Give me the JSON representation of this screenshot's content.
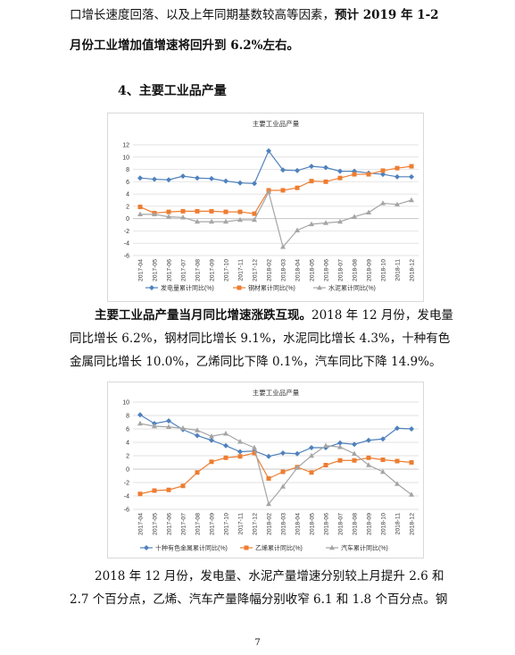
{
  "text": {
    "intro_line1": "口增长速度回落、以及上年同期基数较高等因素，",
    "intro_bold1": "预计 2019 年 1-2",
    "intro_bold2": "月份工业增加值增速将回升到 6.2%左右。",
    "section_heading": "4、主要工业品产量",
    "para2_bold": "主要工业品产量当月同比增速涨跌互现。",
    "para2_rest": "2018 年 12 月份，发电量同比增长 6.2%，钢材同比增长 9.1%，水泥同比增长 4.3%，十种有色金属同比增长 10.0%，乙烯同比下降 0.1%，汽车同比下降 14.9%。",
    "para3": "2018 年 12 月份，发电量、水泥产量增速分别较上月提升 2.6 和 2.7 个百分点，乙烯、汽车产量降幅分别收窄 6.1 和 1.8 个百分点。钢",
    "page_number": "7"
  },
  "chart_data": [
    {
      "type": "line",
      "title": "主要工业品产量",
      "x": [
        "2017-04",
        "2017-05",
        "2017-06",
        "2017-07",
        "2017-08",
        "2017-09",
        "2017-10",
        "2017-11",
        "2017-12",
        "2018-02",
        "2018-03",
        "2018-04",
        "2018-05",
        "2018-06",
        "2018-07",
        "2018-08",
        "2018-09",
        "2018-10",
        "2018-11",
        "2018-12"
      ],
      "ylim": [
        -6,
        12
      ],
      "yticks": [
        -6,
        -4,
        -2,
        0,
        2,
        4,
        6,
        8,
        10,
        12
      ],
      "grid": true,
      "legend_position": "bottom",
      "series": [
        {
          "name": "发电量累计同比(%)",
          "color": "#4f81bd",
          "marker": "diamond",
          "values": [
            6.6,
            6.4,
            6.3,
            6.9,
            6.6,
            6.5,
            6.1,
            5.8,
            5.7,
            11.0,
            7.9,
            7.8,
            8.5,
            8.3,
            7.7,
            7.7,
            7.4,
            7.2,
            6.8,
            6.8
          ]
        },
        {
          "name": "钢材累计同比(%)",
          "color": "#ed7d31",
          "marker": "square",
          "values": [
            1.9,
            0.9,
            1.1,
            1.2,
            1.2,
            1.2,
            1.1,
            1.1,
            0.8,
            4.6,
            4.6,
            5.0,
            6.1,
            6.0,
            6.6,
            7.2,
            7.2,
            7.8,
            8.2,
            8.5
          ]
        },
        {
          "name": "水泥累计同比(%)",
          "color": "#a5a5a5",
          "marker": "triangle",
          "values": [
            0.7,
            0.7,
            0.3,
            0.2,
            -0.5,
            -0.5,
            -0.5,
            -0.2,
            -0.2,
            4.3,
            -4.6,
            -1.9,
            -0.9,
            -0.7,
            -0.5,
            0.3,
            1.0,
            2.5,
            2.3,
            3.0
          ]
        }
      ]
    },
    {
      "type": "line",
      "title": "主要工业品产量",
      "x": [
        "2017-04",
        "2017-05",
        "2017-06",
        "2017-07",
        "2017-08",
        "2017-09",
        "2017-10",
        "2017-11",
        "2017-12",
        "2018-02",
        "2018-03",
        "2018-04",
        "2018-05",
        "2018-06",
        "2018-07",
        "2018-08",
        "2018-09",
        "2018-10",
        "2018-11",
        "2018-12"
      ],
      "ylim": [
        -6,
        10
      ],
      "yticks": [
        -6,
        -4,
        -2,
        0,
        2,
        4,
        6,
        8,
        10
      ],
      "grid": true,
      "legend_position": "bottom",
      "series": [
        {
          "name": "十种有色金属累计同比(%)",
          "color": "#4f81bd",
          "marker": "diamond",
          "values": [
            8.1,
            6.8,
            7.2,
            5.9,
            5.0,
            4.3,
            3.5,
            2.6,
            2.7,
            1.9,
            2.4,
            2.3,
            3.2,
            3.2,
            3.9,
            3.7,
            4.3,
            4.5,
            6.1,
            6.0
          ]
        },
        {
          "name": "乙烯累计同比(%)",
          "color": "#ed7d31",
          "marker": "square",
          "values": [
            -3.7,
            -3.2,
            -3.1,
            -2.5,
            -0.5,
            1.1,
            1.7,
            1.9,
            2.4,
            -1.4,
            -0.4,
            0.3,
            -0.5,
            0.6,
            1.3,
            1.3,
            1.7,
            1.4,
            1.2,
            1.0
          ]
        },
        {
          "name": "汽车累计同比(%)",
          "color": "#a5a5a5",
          "marker": "triangle",
          "values": [
            6.8,
            6.4,
            6.3,
            6.1,
            5.8,
            4.9,
            5.3,
            4.1,
            3.2,
            -5.2,
            -2.6,
            0.2,
            2.0,
            3.5,
            3.3,
            2.3,
            0.6,
            -0.4,
            -2.2,
            -3.8
          ]
        }
      ]
    }
  ]
}
